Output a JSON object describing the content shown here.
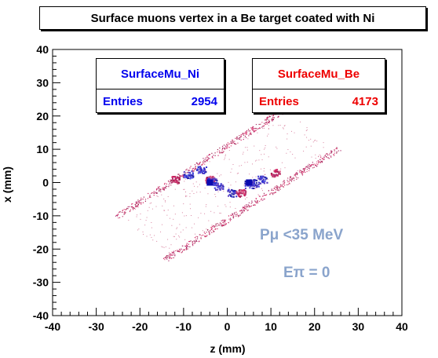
{
  "chart_data": {
    "type": "scatter",
    "title": "Surface muons vertex in a Be target coated with Ni",
    "xlabel": "z (mm)",
    "ylabel": "x (mm)",
    "xlim": [
      -40,
      40
    ],
    "ylim": [
      -40,
      40
    ],
    "xticks": [
      "-40",
      "-30",
      "-20",
      "-10",
      "0",
      "10",
      "20",
      "30",
      "40"
    ],
    "yticks": [
      "40",
      "30",
      "20",
      "10",
      "0",
      "-10",
      "-20",
      "-30",
      "-40"
    ],
    "series": [
      {
        "name": "SurfaceMu_Ni",
        "color": "#0000ee",
        "entries_label": "Entries",
        "entries": "2954"
      },
      {
        "name": "SurfaceMu_Be",
        "color": "#ee0000",
        "entries_label": "Entries",
        "entries": "4173"
      }
    ],
    "region": {
      "z_range": [
        -20,
        20
      ],
      "width_mm": 10,
      "angle_deg": 40
    },
    "annotations": [
      "Pμ <35 MeV",
      "Eπ = 0"
    ],
    "grid": false
  }
}
